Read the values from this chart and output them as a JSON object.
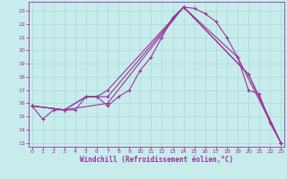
{
  "xlabel": "Windchill (Refroidissement éolien,°C)",
  "xlim": [
    -0.3,
    23.3
  ],
  "ylim": [
    12.7,
    23.7
  ],
  "yticks": [
    13,
    14,
    15,
    16,
    17,
    18,
    19,
    20,
    21,
    22,
    23
  ],
  "xticks": [
    0,
    1,
    2,
    3,
    4,
    5,
    6,
    7,
    8,
    9,
    10,
    11,
    12,
    13,
    14,
    15,
    16,
    17,
    18,
    19,
    20,
    21,
    22,
    23
  ],
  "bg_color": "#c8ecec",
  "grid_color": "#a8d8d8",
  "line_color": "#993399",
  "lines": [
    {
      "x": [
        0,
        1,
        2,
        3,
        4,
        5,
        6,
        7,
        8,
        9,
        10,
        11,
        12,
        13,
        14,
        15,
        16,
        17,
        18,
        19,
        20,
        21,
        22,
        23
      ],
      "y": [
        15.8,
        14.8,
        15.5,
        15.5,
        15.5,
        16.5,
        16.5,
        15.8,
        16.5,
        17.0,
        18.5,
        19.5,
        21.0,
        22.5,
        23.3,
        23.2,
        22.8,
        22.2,
        21.0,
        19.5,
        17.0,
        16.7,
        14.5,
        13.0
      ]
    },
    {
      "x": [
        0,
        3,
        5,
        6,
        7,
        14,
        19,
        23
      ],
      "y": [
        15.8,
        15.5,
        16.5,
        16.5,
        17.0,
        23.3,
        19.5,
        13.0
      ]
    },
    {
      "x": [
        0,
        3,
        5,
        6,
        7,
        14,
        20,
        23
      ],
      "y": [
        15.8,
        15.5,
        16.5,
        16.5,
        16.5,
        23.3,
        18.2,
        13.0
      ]
    },
    {
      "x": [
        0,
        3,
        7,
        14,
        20,
        23
      ],
      "y": [
        15.8,
        15.5,
        16.0,
        23.3,
        18.2,
        13.0
      ]
    }
  ]
}
